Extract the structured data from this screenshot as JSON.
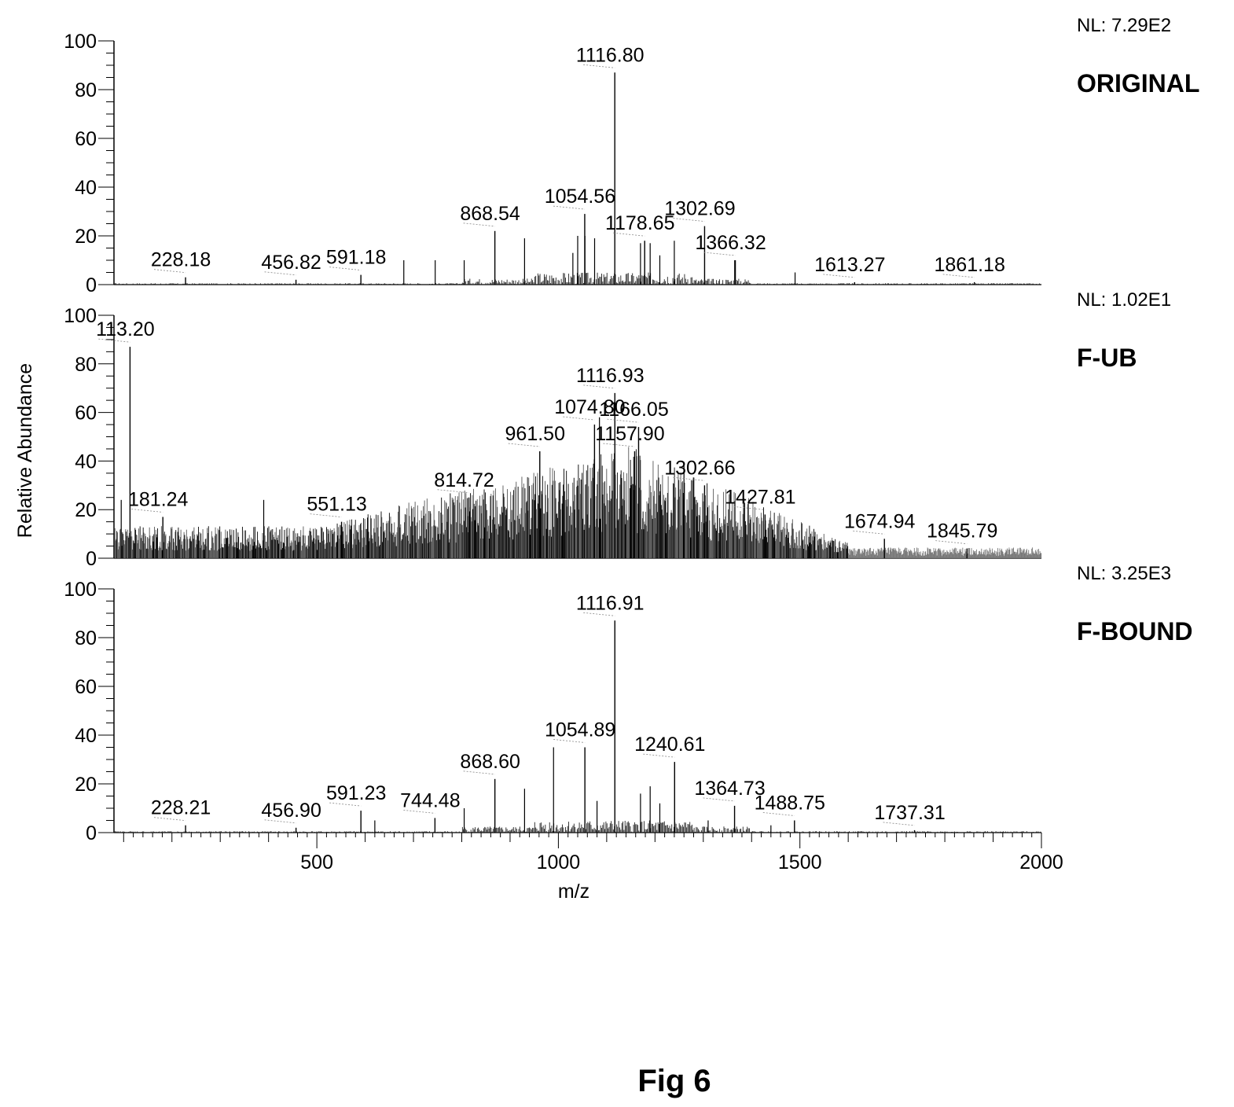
{
  "figure": {
    "caption": "Fig 6"
  },
  "chart_data": {
    "type": "bar",
    "xlabel": "m/z",
    "ylabel": "Relative Abundance",
    "xlim": [
      80,
      2000
    ],
    "ylim": [
      0,
      100
    ],
    "x_ticks": [
      500,
      1000,
      1500,
      2000
    ],
    "y_ticks": [
      0,
      20,
      40,
      60,
      80,
      100
    ],
    "grid": false,
    "panels": [
      {
        "name": "ORIGINAL",
        "nl": "NL: 7.29E2",
        "labeled_peaks": [
          {
            "mz": 1116.8,
            "label": "1116.80",
            "intensity": 87
          },
          {
            "mz": 1054.56,
            "label": "1054.56",
            "intensity": 29
          },
          {
            "mz": 1178.65,
            "label": "1178.65",
            "intensity": 18
          },
          {
            "mz": 868.54,
            "label": "868.54",
            "intensity": 22
          },
          {
            "mz": 591.18,
            "label": "591.18",
            "intensity": 4
          },
          {
            "mz": 1302.69,
            "label": "1302.69",
            "intensity": 24
          },
          {
            "mz": 456.82,
            "label": "456.82",
            "intensity": 2
          },
          {
            "mz": 228.18,
            "label": "228.18",
            "intensity": 3
          },
          {
            "mz": 1366.32,
            "label": "1366.32",
            "intensity": 10
          },
          {
            "mz": 1613.27,
            "label": "1613.27",
            "intensity": 1
          },
          {
            "mz": 1861.18,
            "label": "1861.18",
            "intensity": 1
          }
        ],
        "other_peaks": [
          {
            "mz": 680,
            "intensity": 10
          },
          {
            "mz": 745,
            "intensity": 10
          },
          {
            "mz": 805,
            "intensity": 10
          },
          {
            "mz": 930,
            "intensity": 19
          },
          {
            "mz": 1030,
            "intensity": 13
          },
          {
            "mz": 1040,
            "intensity": 20
          },
          {
            "mz": 1055,
            "intensity": 20
          },
          {
            "mz": 1075,
            "intensity": 19
          },
          {
            "mz": 1170,
            "intensity": 17
          },
          {
            "mz": 1190,
            "intensity": 17
          },
          {
            "mz": 1210,
            "intensity": 12
          },
          {
            "mz": 1240,
            "intensity": 18
          },
          {
            "mz": 1365,
            "intensity": 10
          },
          {
            "mz": 1490,
            "intensity": 5
          }
        ],
        "baseline": "sparse"
      },
      {
        "name": "F-UB",
        "nl": "NL: 1.02E1",
        "labeled_peaks": [
          {
            "mz": 113.2,
            "label": "113.20",
            "intensity": 87
          },
          {
            "mz": 1116.93,
            "label": "1116.93",
            "intensity": 68
          },
          {
            "mz": 1157.9,
            "label": "1157.90",
            "intensity": 44
          },
          {
            "mz": 1074.8,
            "label": "1074.80",
            "intensity": 55
          },
          {
            "mz": 1166.05,
            "label": "1166.05",
            "intensity": 54
          },
          {
            "mz": 961.5,
            "label": "961.50",
            "intensity": 44
          },
          {
            "mz": 814.72,
            "label": "814.72",
            "intensity": 25
          },
          {
            "mz": 181.24,
            "label": "181.24",
            "intensity": 17
          },
          {
            "mz": 551.13,
            "label": "551.13",
            "intensity": 15
          },
          {
            "mz": 1302.66,
            "label": "1302.66",
            "intensity": 30
          },
          {
            "mz": 1427.81,
            "label": "1427.81",
            "intensity": 18
          },
          {
            "mz": 1674.94,
            "label": "1674.94",
            "intensity": 8
          },
          {
            "mz": 1845.79,
            "label": "1845.79",
            "intensity": 4
          }
        ],
        "other_peaks": [
          {
            "mz": 95,
            "intensity": 24
          },
          {
            "mz": 390,
            "intensity": 24
          },
          {
            "mz": 1085,
            "intensity": 58
          },
          {
            "mz": 1260,
            "intensity": 38
          }
        ],
        "baseline": "dense"
      },
      {
        "name": "F-BOUND",
        "nl": "NL: 3.25E3",
        "labeled_peaks": [
          {
            "mz": 1116.91,
            "label": "1116.91",
            "intensity": 87
          },
          {
            "mz": 1054.89,
            "label": "1054.89",
            "intensity": 35
          },
          {
            "mz": 1240.61,
            "label": "1240.61",
            "intensity": 29
          },
          {
            "mz": 868.6,
            "label": "868.60",
            "intensity": 22
          },
          {
            "mz": 591.23,
            "label": "591.23",
            "intensity": 9
          },
          {
            "mz": 744.48,
            "label": "744.48",
            "intensity": 6
          },
          {
            "mz": 1364.73,
            "label": "1364.73",
            "intensity": 11
          },
          {
            "mz": 228.21,
            "label": "228.21",
            "intensity": 3
          },
          {
            "mz": 456.9,
            "label": "456.90",
            "intensity": 2
          },
          {
            "mz": 1488.75,
            "label": "1488.75",
            "intensity": 5
          },
          {
            "mz": 1737.31,
            "label": "1737.31",
            "intensity": 1
          }
        ],
        "other_peaks": [
          {
            "mz": 990,
            "intensity": 35
          },
          {
            "mz": 930,
            "intensity": 18
          },
          {
            "mz": 805,
            "intensity": 10
          },
          {
            "mz": 620,
            "intensity": 5
          },
          {
            "mz": 1080,
            "intensity": 13
          },
          {
            "mz": 1170,
            "intensity": 16
          },
          {
            "mz": 1190,
            "intensity": 19
          },
          {
            "mz": 1210,
            "intensity": 12
          },
          {
            "mz": 1310,
            "intensity": 5
          },
          {
            "mz": 1440,
            "intensity": 3
          }
        ],
        "baseline": "sparse"
      }
    ]
  }
}
